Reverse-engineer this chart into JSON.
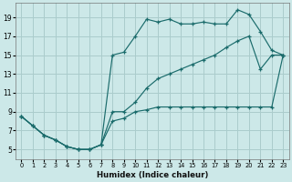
{
  "xlabel": "Humidex (Indice chaleur)",
  "bg_color": "#cce8e8",
  "grid_color": "#aacccc",
  "line_color": "#1a6b6b",
  "xlim": [
    -0.5,
    23.5
  ],
  "ylim": [
    4.0,
    20.5
  ],
  "xticks": [
    0,
    1,
    2,
    3,
    4,
    5,
    6,
    7,
    8,
    9,
    10,
    11,
    12,
    13,
    14,
    15,
    16,
    17,
    18,
    19,
    20,
    21,
    22,
    23
  ],
  "yticks": [
    5,
    7,
    9,
    11,
    13,
    15,
    17,
    19
  ],
  "line_top_x": [
    0,
    1,
    2,
    3,
    4,
    5,
    6,
    7,
    8,
    9,
    10,
    11,
    12,
    13,
    14,
    15,
    16,
    17,
    18,
    19,
    20,
    21,
    22,
    23
  ],
  "line_top_y": [
    8.5,
    7.5,
    6.5,
    6.0,
    5.3,
    5.0,
    5.0,
    5.5,
    15.0,
    15.3,
    17.0,
    18.8,
    18.5,
    18.8,
    18.3,
    18.3,
    18.5,
    18.3,
    18.3,
    19.8,
    19.3,
    17.5,
    15.5,
    15.0
  ],
  "line_mid_x": [
    0,
    1,
    2,
    3,
    4,
    5,
    6,
    7,
    8,
    9,
    10,
    11,
    12,
    13,
    14,
    15,
    16,
    17,
    18,
    19,
    20,
    21,
    22,
    23
  ],
  "line_mid_y": [
    8.5,
    7.5,
    6.5,
    6.0,
    5.3,
    5.0,
    5.0,
    5.5,
    9.0,
    9.0,
    10.0,
    11.5,
    12.5,
    13.0,
    13.5,
    14.0,
    14.5,
    15.0,
    15.8,
    16.5,
    17.0,
    13.5,
    15.0,
    15.0
  ],
  "line_bot_x": [
    0,
    1,
    2,
    3,
    4,
    5,
    6,
    7,
    8,
    9,
    10,
    11,
    12,
    13,
    14,
    15,
    16,
    17,
    18,
    19,
    20,
    21,
    22,
    23
  ],
  "line_bot_y": [
    8.5,
    7.5,
    6.5,
    6.0,
    5.3,
    5.0,
    5.0,
    5.5,
    8.0,
    8.3,
    9.0,
    9.2,
    9.5,
    9.5,
    9.5,
    9.5,
    9.5,
    9.5,
    9.5,
    9.5,
    9.5,
    9.5,
    9.5,
    15.0
  ]
}
